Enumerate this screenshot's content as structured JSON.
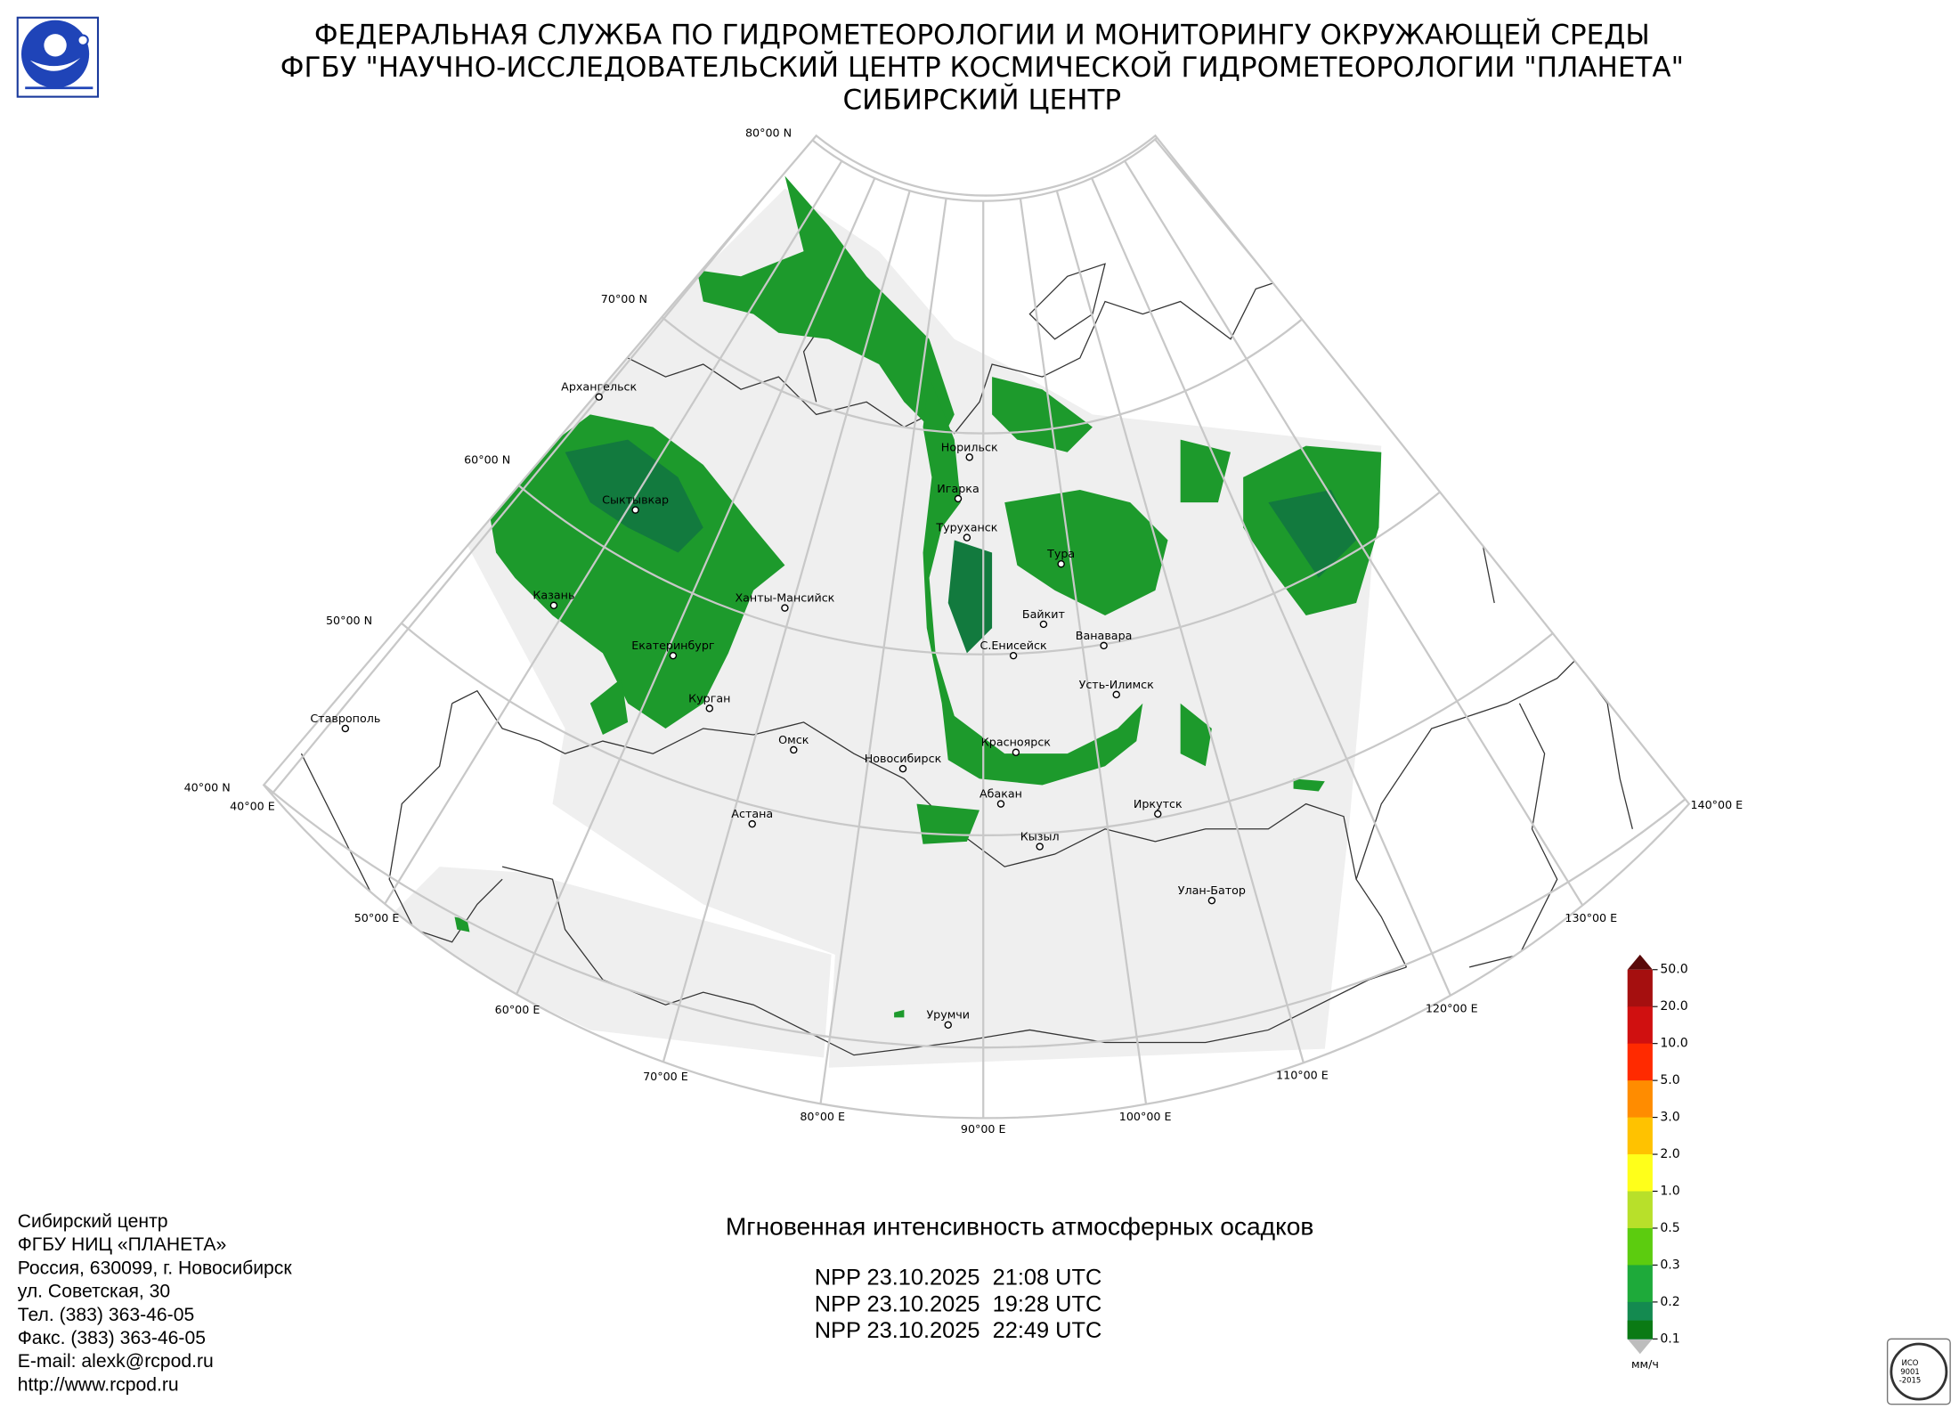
{
  "header": {
    "lines": [
      "ФЕДЕРАЛЬНАЯ СЛУЖБА ПО ГИДРОМЕТЕОРОЛОГИИ И МОНИТОРИНГУ ОКРУЖАЮЩЕЙ СРЕДЫ",
      "ФГБУ \"НАУЧНО-ИССЛЕДОВАТЕЛЬСКИЙ ЦЕНТР КОСМИЧЕСКОЙ ГИДРОМЕТЕОРОЛОГИИ \"ПЛАНЕТА\"",
      "СИБИРСКИЙ ЦЕНТР"
    ]
  },
  "map": {
    "lat_labels": [
      "80°00 N",
      "70°00 N",
      "60°00 N",
      "50°00 N",
      "40°00 N"
    ],
    "lon_labels": [
      "40°00 E",
      "50°00 E",
      "60°00 E",
      "70°00 E",
      "80°00 E",
      "90°00 E",
      "100°00 E",
      "110°00 E",
      "120°00 E",
      "130°00 E",
      "140°00 E"
    ],
    "cities": [
      "Архангельск",
      "Сыктывкар",
      "Казань",
      "Екатеринбург",
      "Курган",
      "Ханты-Мансийск",
      "Ставрополь",
      "Омск",
      "Новосибирск",
      "Астана",
      "Норильск",
      "Игарка",
      "Туруханск",
      "Тура",
      "Байкит",
      "Ванавара",
      "С.Енисейск",
      "Усть-Илимск",
      "Красноярск",
      "Абакан",
      "Иркутск",
      "Кызыл",
      "Улан-Батор",
      "Урумчи"
    ]
  },
  "caption": {
    "title": "Мгновенная интенсивность атмосферных осадков",
    "passes": [
      "NPP 23.10.2025  21:08 UTC",
      "NPP 23.10.2025  19:28 UTC",
      "NPP 23.10.2025  22:49 UTC"
    ]
  },
  "legend": {
    "labels": [
      "50.0",
      "20.0",
      "10.0",
      "5.0",
      "3.0",
      "2.0",
      "1.0",
      "0.5",
      "0.3",
      "0.2",
      "0.1"
    ],
    "unit": "мм/ч"
  },
  "contacts": {
    "lines": [
      "Сибирский центр",
      "ФГБУ НИЦ «ПЛАНЕТА»",
      "Россия, 630099, г. Новосибирск",
      "ул. Советская, 30",
      "Тел. (383) 363-46-05",
      "Факс. (383) 363-46-05",
      "E-mail: alexk@rcpod.ru",
      "http://www.rcpod.ru"
    ]
  },
  "certificate": {
    "lines": [
      "ИСО",
      "9001",
      "-2015"
    ]
  }
}
